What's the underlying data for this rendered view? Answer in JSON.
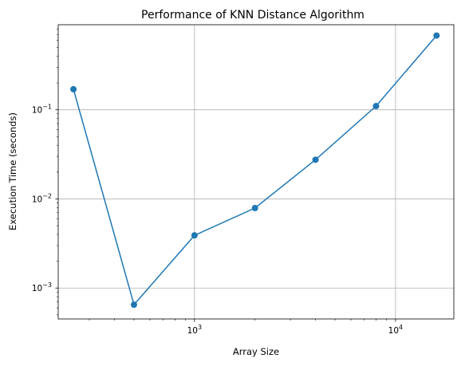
{
  "chart_data": {
    "type": "line",
    "title": "Performance of KNN Distance Algorithm",
    "xlabel": "Array Size",
    "ylabel": "Execution Time (seconds)",
    "x_scale": "log",
    "y_scale": "log",
    "xlim": [
      210,
      19500
    ],
    "ylim": [
      0.00045,
      0.9
    ],
    "grid": true,
    "x_major_ticks": [
      {
        "value": 1000,
        "base": "10",
        "exp": "3"
      },
      {
        "value": 10000,
        "base": "10",
        "exp": "4"
      }
    ],
    "y_major_ticks": [
      {
        "value": 0.001,
        "base": "10",
        "exp": "−3"
      },
      {
        "value": 0.01,
        "base": "10",
        "exp": "−2"
      },
      {
        "value": 0.1,
        "base": "10",
        "exp": "−1"
      }
    ],
    "series": [
      {
        "x": [
          250,
          500,
          1000,
          2000,
          4000,
          8000,
          16000
        ],
        "y": [
          0.17,
          0.00065,
          0.0039,
          0.0079,
          0.0275,
          0.11,
          0.68
        ],
        "color": "#1f77b4",
        "marker": "circle"
      }
    ]
  }
}
